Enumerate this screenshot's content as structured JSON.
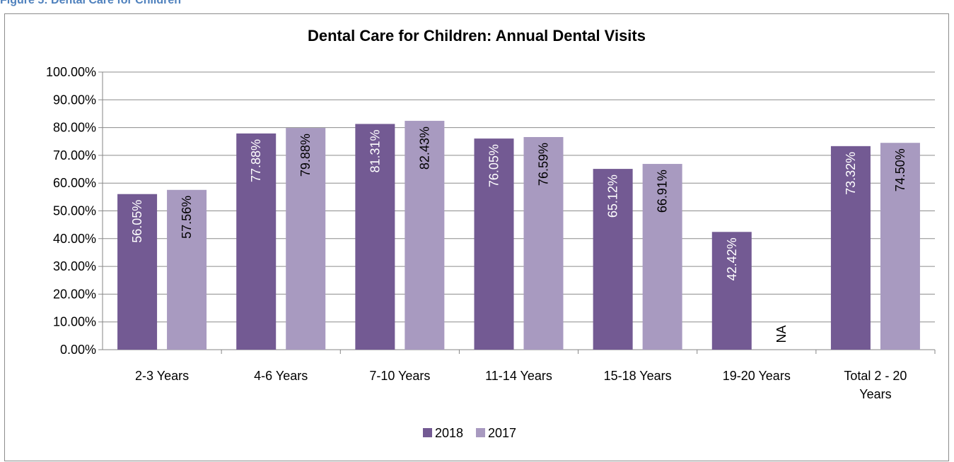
{
  "figure_caption": "Figure 5: Dental Care for Children",
  "chart_data": {
    "type": "bar",
    "title": "Dental Care for Children: Annual Dental Visits",
    "xlabel": "",
    "ylabel": "",
    "categories": [
      "2-3 Years",
      "4-6 Years",
      "7-10 Years",
      "11-14 Years",
      "15-18 Years",
      "19-20 Years",
      [
        "Total 2 - 20",
        "Years"
      ]
    ],
    "series": [
      {
        "name": "2018",
        "color": "#735a93",
        "values": [
          56.05,
          77.88,
          81.31,
          76.05,
          65.12,
          42.42,
          73.32
        ],
        "labels": [
          "56.05%",
          "77.88%",
          "81.31%",
          "76.05%",
          "65.12%",
          "42.42%",
          "73.32%"
        ],
        "label_color": "#ffffff"
      },
      {
        "name": "2017",
        "color": "#a89ac0",
        "values": [
          57.56,
          79.88,
          82.43,
          76.59,
          66.91,
          null,
          74.5
        ],
        "labels": [
          "57.56%",
          "79.88%",
          "82.43%",
          "76.59%",
          "66.91%",
          "NA",
          "74.50%"
        ],
        "label_color": "#000000"
      }
    ],
    "ylim": [
      0,
      100
    ],
    "yticks": [
      "0.00%",
      "10.00%",
      "20.00%",
      "30.00%",
      "40.00%",
      "50.00%",
      "60.00%",
      "70.00%",
      "80.00%",
      "90.00%",
      "100.00%"
    ],
    "grid": true,
    "legend_position": "bottom"
  }
}
